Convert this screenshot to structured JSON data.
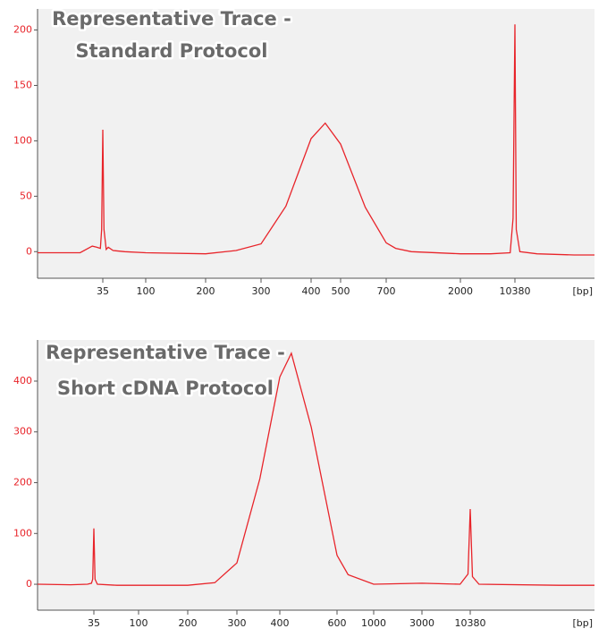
{
  "chart_data": [
    {
      "type": "line",
      "title": [
        "Representative Trace -",
        "Standard Protocol"
      ],
      "xlabel": "[bp]",
      "color": "#e8242a",
      "x": [
        7,
        20,
        27,
        30,
        33,
        34,
        35,
        36,
        38,
        40,
        45,
        60,
        100,
        200,
        250,
        300,
        346,
        400,
        445,
        500,
        600,
        700,
        800,
        1000,
        2000,
        5000,
        9000,
        9800,
        10380,
        10800,
        12000,
        20000,
        60000,
        110000
      ],
      "values": [
        -1,
        -1,
        5,
        4,
        3,
        20,
        110,
        20,
        2,
        4,
        1,
        0,
        -1,
        -2,
        1,
        7,
        41,
        102,
        116,
        97,
        40,
        8,
        3,
        0,
        -2,
        -2,
        -1,
        30,
        205,
        20,
        0,
        -2,
        -3,
        -3
      ],
      "xlim": [
        7,
        110000
      ],
      "xticks": [
        35,
        100,
        200,
        300,
        400,
        500,
        700,
        2000,
        10380
      ],
      "ylim": [
        -24,
        219
      ],
      "yticks": [
        0,
        50,
        100,
        150,
        200
      ]
    },
    {
      "type": "line",
      "title": [
        "Representative Trace -",
        "Short cDNA Protocol"
      ],
      "xlabel": "[bp]",
      "color": "#e8242a",
      "x": [
        9,
        20,
        30,
        33,
        34,
        35,
        36,
        38,
        60,
        100,
        200,
        250,
        300,
        350,
        400,
        434,
        500,
        600,
        700,
        1000,
        3000,
        8000,
        9800,
        10380,
        11000,
        13000,
        100000,
        250000
      ],
      "values": [
        0,
        -1,
        0,
        2,
        10,
        110,
        10,
        0,
        -2,
        -2,
        -2,
        3,
        42,
        208,
        408,
        455,
        309,
        57,
        19,
        0,
        2,
        0,
        20,
        148,
        15,
        0,
        -2,
        -2
      ],
      "xlim": [
        9,
        250000
      ],
      "xticks": [
        35,
        100,
        200,
        300,
        400,
        600,
        1000,
        3000,
        10380
      ],
      "ylim": [
        -51,
        481
      ],
      "yticks": [
        0,
        100,
        200,
        300,
        400
      ]
    }
  ]
}
